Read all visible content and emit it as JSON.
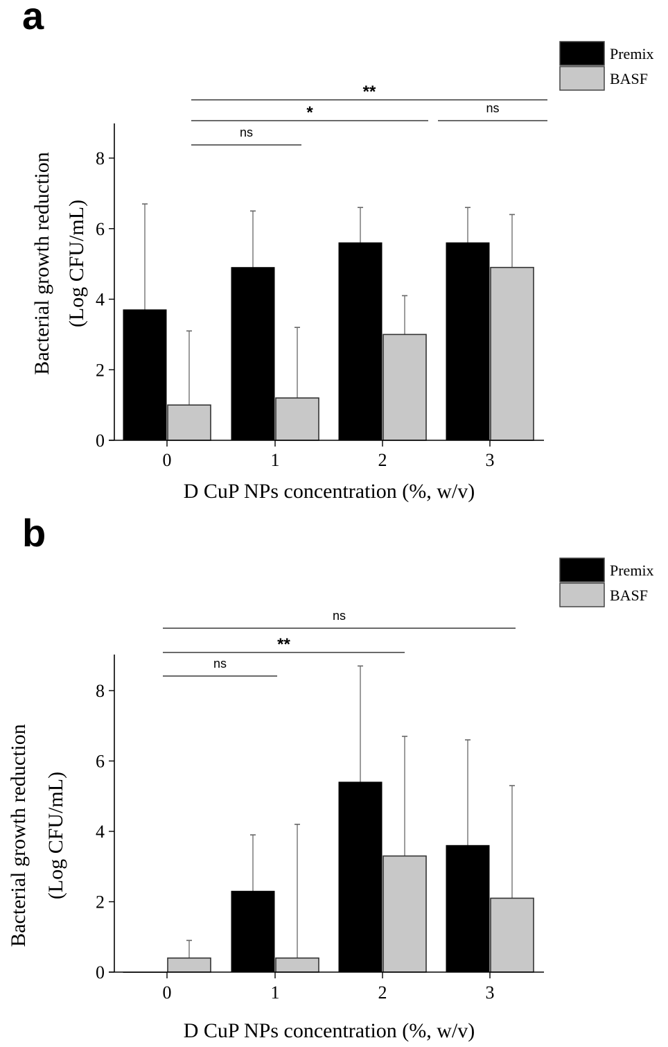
{
  "chart_data": [
    {
      "panel": "a",
      "type": "bar",
      "title": "",
      "xlabel": "D CuP NPs concentration (%, w/v)",
      "ylabel_line1": "Bacterial growth reduction",
      "ylabel_line2": "(Log CFU/mL)",
      "categories": [
        "0",
        "1",
        "2",
        "3"
      ],
      "ylim": [
        0,
        9
      ],
      "yticks": [
        "0",
        "2",
        "4",
        "6",
        "8"
      ],
      "series": [
        {
          "name": "Premix",
          "color": "#000000",
          "values": [
            3.7,
            4.9,
            5.6,
            5.6
          ],
          "error_upper": [
            6.7,
            6.5,
            6.6,
            6.6
          ]
        },
        {
          "name": "BASF",
          "color": "#c8c8c8",
          "values": [
            1.0,
            1.2,
            3.0,
            4.9
          ],
          "error_upper": [
            3.1,
            3.2,
            4.1,
            6.4
          ]
        }
      ],
      "legend": {
        "placement": "top-right",
        "items": [
          "Premix",
          "BASF"
        ]
      },
      "significance": [
        {
          "label": "**",
          "from": "0",
          "to": "3",
          "level": 3
        },
        {
          "label": "*",
          "from": "0",
          "to": "2",
          "level": 2
        },
        {
          "label": "ns",
          "from": "2",
          "to": "3",
          "level": 2
        },
        {
          "label": "ns",
          "from": "0",
          "to": "1",
          "level": 1
        }
      ]
    },
    {
      "panel": "b",
      "type": "bar",
      "title": "",
      "xlabel": "D CuP NPs concentration (%, w/v)",
      "ylabel_line1": "Bacterial growth reduction",
      "ylabel_line2": "(Log CFU/mL)",
      "categories": [
        "0",
        "1",
        "2",
        "3"
      ],
      "ylim": [
        0,
        9
      ],
      "yticks": [
        "0",
        "2",
        "4",
        "6",
        "8"
      ],
      "series": [
        {
          "name": "Premix",
          "color": "#000000",
          "values": [
            0.0,
            2.3,
            5.4,
            3.6
          ],
          "error_upper": [
            0.0,
            3.9,
            8.7,
            6.6
          ]
        },
        {
          "name": "BASF",
          "color": "#c8c8c8",
          "values": [
            0.4,
            0.4,
            3.3,
            2.1
          ],
          "error_upper": [
            0.9,
            4.2,
            6.7,
            5.3
          ]
        }
      ],
      "legend": {
        "placement": "top-right",
        "items": [
          "Premix",
          "BASF"
        ]
      },
      "significance": [
        {
          "label": "ns",
          "from": "0",
          "to": "3",
          "level": 3
        },
        {
          "label": "**",
          "from": "0",
          "to": "2",
          "level": 2
        },
        {
          "label": "ns",
          "from": "0",
          "to": "1",
          "level": 1
        }
      ]
    }
  ]
}
